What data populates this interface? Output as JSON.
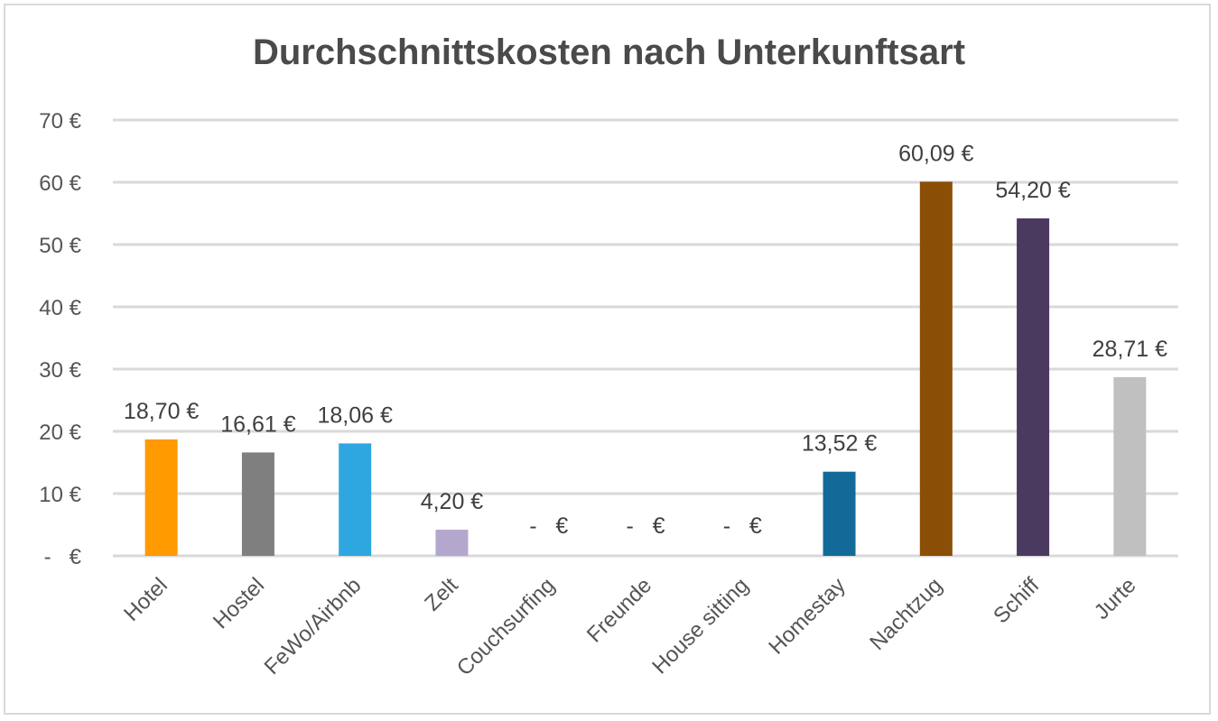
{
  "chart_data": {
    "type": "bar",
    "title": "Durchschnittskosten nach Unterkunftsart",
    "xlabel": "",
    "ylabel": "",
    "ylim": [
      0,
      70
    ],
    "grid": true,
    "y_ticks": [
      {
        "value": 0,
        "label": "-   €"
      },
      {
        "value": 10,
        "label": "10 €"
      },
      {
        "value": 20,
        "label": "20 €"
      },
      {
        "value": 30,
        "label": "30 €"
      },
      {
        "value": 40,
        "label": "40 €"
      },
      {
        "value": 50,
        "label": "50 €"
      },
      {
        "value": 60,
        "label": "60 €"
      },
      {
        "value": 70,
        "label": "70 €"
      }
    ],
    "categories": [
      "Hotel",
      "Hostel",
      "FeWo/Airbnb",
      "Zelt",
      "Couchsurfing",
      "Freunde",
      "House sitting",
      "Homestay",
      "Nachtzug",
      "Schiff",
      "Jurte"
    ],
    "values": [
      18.7,
      16.61,
      18.06,
      4.2,
      0,
      0,
      0,
      13.52,
      60.09,
      54.2,
      28.71
    ],
    "data_labels": [
      "18,70 €",
      "16,61 €",
      "18,06 €",
      "4,20 €",
      "-   €",
      "-   €",
      "-   €",
      "13,52 €",
      "60,09 €",
      "54,20 €",
      "28,71 €"
    ],
    "colors": [
      "#ff9a00",
      "#7f7f7f",
      "#2ea7e0",
      "#b4a7cd",
      "#ffffff",
      "#ffffff",
      "#ffffff",
      "#126a99",
      "#8b4e06",
      "#4a3a60",
      "#c0c0c0"
    ],
    "grid_color": "#d9d9d9",
    "text_color": "#555555"
  }
}
